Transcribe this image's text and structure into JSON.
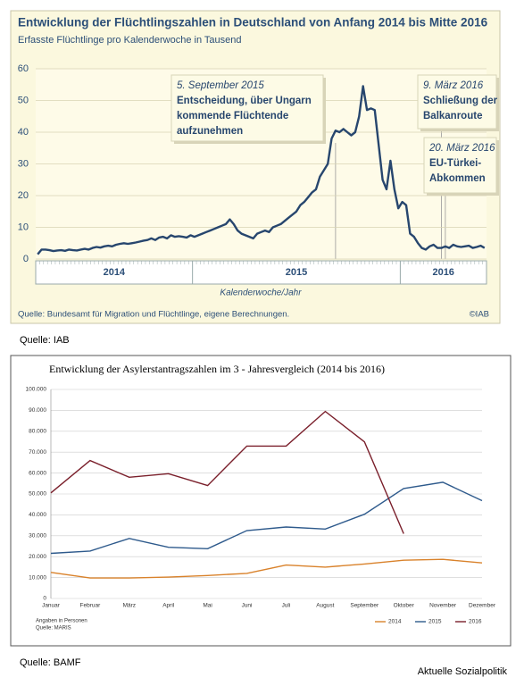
{
  "chart_data": [
    {
      "type": "line",
      "title": "Entwicklung der Flüchtlingszahlen in Deutschland von Anfang 2014 bis Mitte 2016",
      "subtitle": "Erfasste Flüchtlinge pro Kalenderwoche in Tausend",
      "x_label": "Kalenderwoche/Jahr",
      "source": "Quelle: Bundesamt für Migration und Flüchtlinge, eigene Berechnungen.",
      "credit": "©IAB",
      "categories": [
        "2014",
        "2014",
        "2014",
        "2014",
        "2014",
        "2014",
        "2014",
        "2014",
        "2014",
        "2014",
        "2014",
        "2014",
        "2014",
        "2014",
        "2014",
        "2014",
        "2014",
        "2014",
        "2014",
        "2014",
        "2014",
        "2014",
        "2014",
        "2014",
        "2014",
        "2014",
        "2014",
        "2014",
        "2014",
        "2014",
        "2014",
        "2014",
        "2014",
        "2014",
        "2014",
        "2014",
        "2014",
        "2014",
        "2014",
        "2014",
        "2015",
        "2015",
        "2015",
        "2015",
        "2015",
        "2015",
        "2015",
        "2015",
        "2015",
        "2015",
        "2015",
        "2015",
        "2015",
        "2015",
        "2015",
        "2015",
        "2015",
        "2015",
        "2015",
        "2015",
        "2015",
        "2015",
        "2015",
        "2015",
        "2015",
        "2015",
        "2015",
        "2015",
        "2015",
        "2015",
        "2015",
        "2015",
        "2015",
        "2015",
        "2015",
        "2015",
        "2015",
        "2015",
        "2015",
        "2015",
        "2015",
        "2015",
        "2015",
        "2015",
        "2015",
        "2015",
        "2015",
        "2015",
        "2015",
        "2015",
        "2015",
        "2015",
        "2015",
        "2016",
        "2016",
        "2016",
        "2016",
        "2016",
        "2016",
        "2016",
        "2016",
        "2016",
        "2016",
        "2016",
        "2016",
        "2016",
        "2016",
        "2016",
        "2016",
        "2016",
        "2016",
        "2016",
        "2016",
        "2016",
        "2016"
      ],
      "values": [
        1.5,
        3,
        3,
        2.8,
        2.5,
        2.7,
        2.8,
        2.6,
        3,
        2.8,
        2.7,
        3,
        3.2,
        3,
        3.5,
        3.8,
        3.6,
        4,
        4.2,
        4,
        4.5,
        4.8,
        5,
        4.8,
        5,
        5.2,
        5.5,
        5.8,
        6,
        6.5,
        6,
        6.8,
        7,
        6.5,
        7.5,
        7,
        7.2,
        7,
        6.8,
        7.5,
        7,
        7.5,
        8,
        8.5,
        9,
        9.5,
        10,
        10.5,
        11,
        12.5,
        11,
        9,
        8,
        7.5,
        7,
        6.5,
        8,
        8.5,
        9,
        8.5,
        10,
        10.5,
        11,
        12,
        13,
        14,
        15,
        17,
        18,
        19.5,
        21,
        22,
        26,
        28,
        30,
        38,
        40.5,
        40,
        41,
        40,
        39,
        40,
        45,
        54.5,
        47,
        47.5,
        47,
        36,
        25,
        22,
        31,
        22,
        16,
        18,
        17,
        8,
        7,
        5,
        3.5,
        3,
        4,
        4.5,
        3.5,
        3.5,
        4,
        3.5,
        4.5,
        4,
        3.8,
        4,
        4.2,
        3.5,
        3.8,
        4.2,
        3.5
      ],
      "color": "#27466e",
      "ylim": [
        0,
        60
      ],
      "yticks": [
        0,
        10,
        20,
        30,
        40,
        50,
        60
      ],
      "grid": true,
      "annotations": [
        {
          "lines": [
            "5. September 2015",
            "Entscheidung, über Ungarn",
            "kommende Flüchtende",
            "aufzunehmen"
          ]
        },
        {
          "lines": [
            "9. März 2016",
            "Schließung der",
            "Balkanroute"
          ]
        },
        {
          "lines": [
            "20. März 2016",
            "EU-Türkei-",
            "Abkommen"
          ]
        }
      ]
    },
    {
      "type": "line",
      "title": "Entwicklung der Asylerstantragszahlen im 3 - Jahresvergleich (2014 bis 2016)",
      "notes": [
        "Angaben in Personen",
        "Quelle: MARIS"
      ],
      "categories": [
        "Januar",
        "Februar",
        "März",
        "April",
        "Mai",
        "Juni",
        "Juli",
        "August",
        "September",
        "Oktober",
        "November",
        "Dezember"
      ],
      "series": [
        {
          "name": "2014",
          "color": "#d9822b",
          "values": [
            12500,
            9800,
            9800,
            10200,
            11000,
            12000,
            16000,
            15000,
            16500,
            18300,
            18700,
            17000
          ]
        },
        {
          "name": "2015",
          "color": "#2e5a8c",
          "values": [
            21600,
            22700,
            28700,
            24500,
            23800,
            32500,
            34200,
            33200,
            40300,
            52600,
            55600,
            46800
          ]
        },
        {
          "name": "2016",
          "color": "#7a1f2b",
          "values": [
            50500,
            66000,
            58000,
            59700,
            54000,
            72900,
            72900,
            89500,
            74900,
            31000,
            null,
            null
          ]
        }
      ],
      "ylim": [
        0,
        100000
      ],
      "yticks": [
        0,
        {
          "value": 10000,
          "label": "10.000"
        },
        {
          "value": 20000,
          "label": "20.000"
        },
        {
          "value": 30000,
          "label": "30.000"
        },
        {
          "value": 40000,
          "label": "40.000"
        },
        {
          "value": 50000,
          "label": "50.000"
        },
        {
          "value": 60000,
          "label": "60.000"
        },
        {
          "value": 70000,
          "label": "70.000"
        },
        {
          "value": 80000,
          "label": "80.000"
        },
        {
          "value": 90000,
          "label": "90.000"
        },
        {
          "value": 100000,
          "label": "100.000"
        }
      ],
      "grid": true
    }
  ],
  "captions": [
    "Quelle: IAB",
    "Quelle: BAMF",
    "Aktuelle Sozialpolitik"
  ]
}
